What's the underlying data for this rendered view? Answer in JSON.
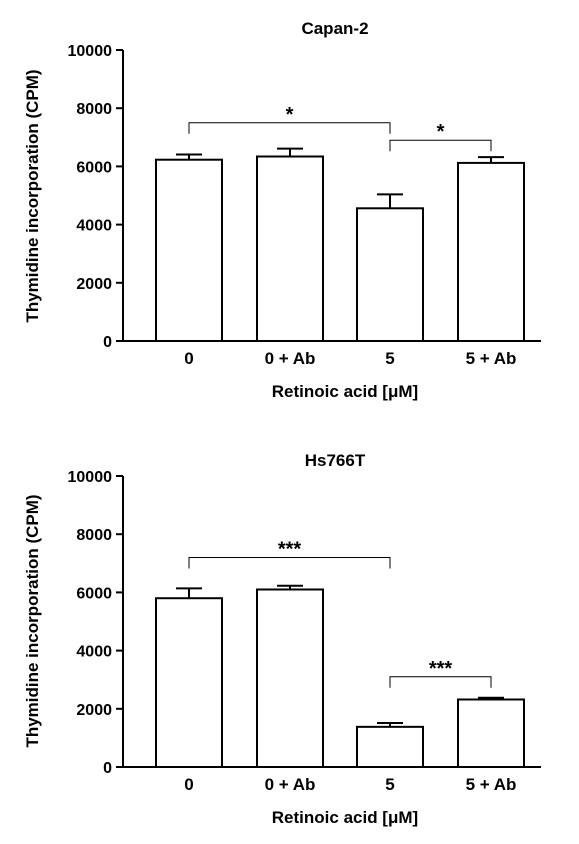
{
  "chart_data": [
    {
      "type": "bar",
      "title": "Capan-2",
      "xlabel": "Retinoic acid [μM]",
      "ylabel": "Thymidine incorporation (CPM)",
      "ylim": [
        0,
        10000
      ],
      "yticks": [
        0,
        2000,
        4000,
        6000,
        8000,
        10000
      ],
      "categories": [
        "0",
        "0 + Ab",
        "5",
        "5 + Ab"
      ],
      "values": [
        6230,
        6340,
        4560,
        6120
      ],
      "errors": [
        180,
        270,
        480,
        200
      ],
      "significance": [
        {
          "from": 0,
          "to": 2,
          "y": 7500,
          "label": "*"
        },
        {
          "from": 2,
          "to": 3,
          "y": 6900,
          "label": "*"
        }
      ]
    },
    {
      "type": "bar",
      "title": "Hs766T",
      "xlabel": "Retinoic acid [μM]",
      "ylabel": "Thymidine incorporation (CPM)",
      "ylim": [
        0,
        10000
      ],
      "yticks": [
        0,
        2000,
        4000,
        6000,
        8000,
        10000
      ],
      "categories": [
        "0",
        "0 + Ab",
        "5",
        "5 + Ab"
      ],
      "values": [
        5800,
        6100,
        1380,
        2320
      ],
      "errors": [
        340,
        130,
        130,
        60
      ],
      "significance": [
        {
          "from": 0,
          "to": 2,
          "y": 7200,
          "label": "***"
        },
        {
          "from": 2,
          "to": 3,
          "y": 3100,
          "label": "***"
        }
      ]
    }
  ]
}
